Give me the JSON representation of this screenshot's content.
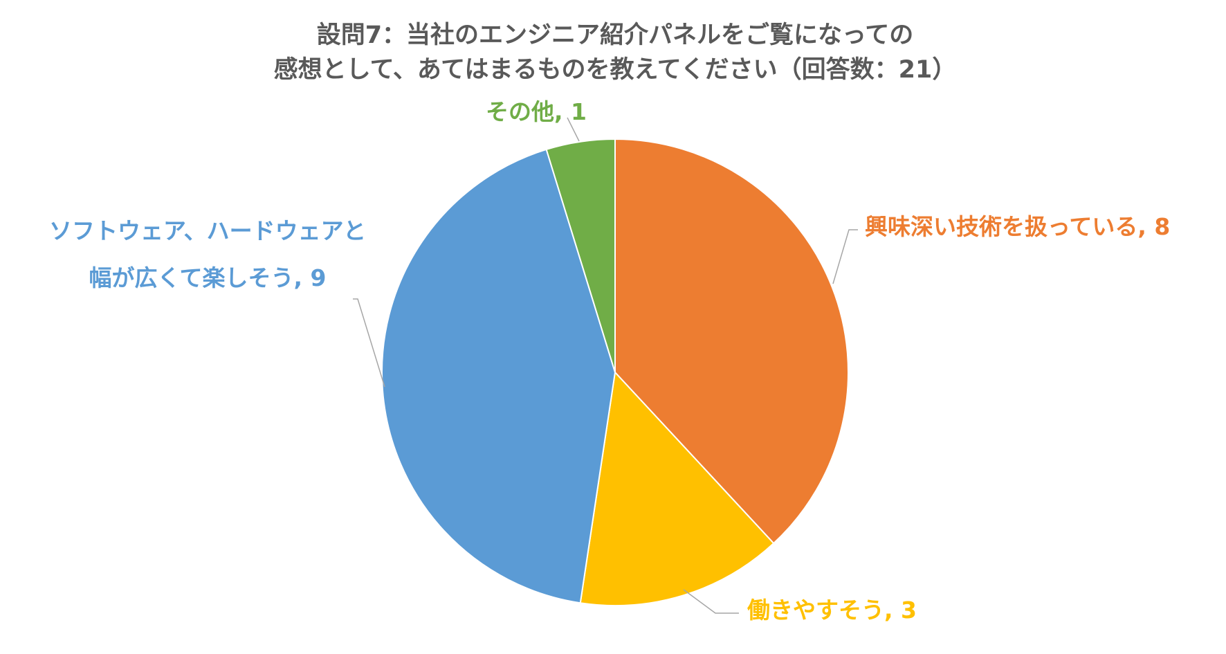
{
  "chart_data": {
    "type": "pie",
    "title": [
      "設問7：当社のエンジニア紹介パネルをご覧になっての",
      "感想として、あてはまるものを教えてください（回答数：21）"
    ],
    "categories": [
      "興味深い技術を扱っている",
      "働きやすそう",
      "ソフトウェア、ハードウェアと幅が広くて楽しそう",
      "その他"
    ],
    "values": [
      8,
      3,
      9,
      1
    ],
    "value_labels": [
      ", 8",
      ", 3",
      ", 9",
      ", 1"
    ],
    "colors": [
      "#ED7D31",
      "#FFC000",
      "#5B9BD5",
      "#70AD47"
    ]
  }
}
